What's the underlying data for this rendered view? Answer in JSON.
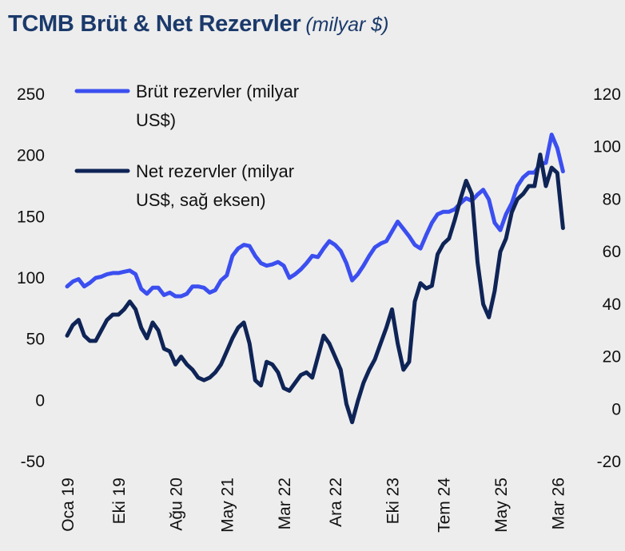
{
  "chart_data": {
    "type": "line",
    "title": "TCMB Brüt & Net Rezervler",
    "subtitle": "(milyar $)",
    "colors": {
      "brut": "#3b4ff0",
      "net": "#0f2456",
      "background": "#ededed"
    },
    "y_left": {
      "min": -50,
      "max": 250,
      "ticks": [
        "250",
        "200",
        "150",
        "100",
        "50",
        "0",
        "-50"
      ]
    },
    "y_right": {
      "min": -20,
      "max": 120,
      "ticks": [
        "120",
        "100",
        "80",
        "60",
        "40",
        "20",
        "0",
        "-20"
      ]
    },
    "x_ticks": [
      "Oca 19",
      "Eki 19",
      "Ağu 20",
      "May 21",
      "Mar 22",
      "Ara 22",
      "Eki 23",
      "Tem 24",
      "May 25",
      "Mar 26"
    ],
    "x_tick_positions": [
      0,
      9,
      19,
      28,
      38,
      47,
      57,
      66,
      76,
      86
    ],
    "x_range": [
      0,
      87.5
    ],
    "legend": [
      {
        "key": "brut",
        "line1": "Brüt rezervler (milyar",
        "line2": "US$)"
      },
      {
        "key": "net",
        "line1": "Net rezervler (milyar",
        "line2": "US$, sağ eksen)"
      }
    ],
    "series": [
      {
        "name": "Brüt rezervler (milyar US$)",
        "key": "brut",
        "axis": "left",
        "points": [
          [
            0,
            93
          ],
          [
            1,
            97
          ],
          [
            2,
            99
          ],
          [
            3,
            93
          ],
          [
            4,
            96
          ],
          [
            5,
            100
          ],
          [
            6,
            101
          ],
          [
            7,
            103
          ],
          [
            8,
            104
          ],
          [
            9,
            104
          ],
          [
            10,
            105
          ],
          [
            11,
            106
          ],
          [
            12,
            103
          ],
          [
            13,
            91
          ],
          [
            14,
            87
          ],
          [
            15,
            92
          ],
          [
            16,
            92
          ],
          [
            17,
            86
          ],
          [
            18,
            88
          ],
          [
            19,
            85
          ],
          [
            20,
            85
          ],
          [
            21,
            87
          ],
          [
            22,
            93
          ],
          [
            23,
            93
          ],
          [
            24,
            92
          ],
          [
            25,
            88
          ],
          [
            26,
            90
          ],
          [
            27,
            98
          ],
          [
            28,
            102
          ],
          [
            29,
            118
          ],
          [
            30,
            124
          ],
          [
            31,
            127
          ],
          [
            32,
            126
          ],
          [
            33,
            118
          ],
          [
            34,
            112
          ],
          [
            35,
            110
          ],
          [
            36,
            111
          ],
          [
            37,
            113
          ],
          [
            38,
            110
          ],
          [
            39,
            100
          ],
          [
            40,
            103
          ],
          [
            41,
            107
          ],
          [
            42,
            112
          ],
          [
            43,
            118
          ],
          [
            44,
            117
          ],
          [
            45,
            124
          ],
          [
            46,
            130
          ],
          [
            47,
            127
          ],
          [
            48,
            122
          ],
          [
            49,
            112
          ],
          [
            50,
            98
          ],
          [
            51,
            103
          ],
          [
            52,
            110
          ],
          [
            53,
            118
          ],
          [
            54,
            125
          ],
          [
            55,
            128
          ],
          [
            56,
            130
          ],
          [
            57,
            138
          ],
          [
            58,
            146
          ],
          [
            59,
            140
          ],
          [
            60,
            134
          ],
          [
            61,
            127
          ],
          [
            62,
            124
          ],
          [
            63,
            135
          ],
          [
            64,
            145
          ],
          [
            65,
            152
          ],
          [
            66,
            154
          ],
          [
            67,
            154
          ],
          [
            68,
            156
          ],
          [
            69,
            161
          ],
          [
            70,
            165
          ],
          [
            71,
            163
          ],
          [
            72,
            168
          ],
          [
            73,
            172
          ],
          [
            74,
            164
          ],
          [
            75,
            145
          ],
          [
            76,
            139
          ],
          [
            77,
            152
          ],
          [
            78,
            161
          ],
          [
            79,
            175
          ],
          [
            80,
            182
          ],
          [
            81,
            186
          ],
          [
            82,
            186
          ],
          [
            83,
            193
          ],
          [
            84,
            194
          ],
          [
            85,
            217
          ],
          [
            86,
            206
          ],
          [
            87,
            187
          ]
        ]
      },
      {
        "name": "Net rezervler (milyar US$, sağ eksen)",
        "key": "net",
        "axis": "right",
        "points": [
          [
            0,
            28
          ],
          [
            1,
            32
          ],
          [
            2,
            34
          ],
          [
            3,
            28
          ],
          [
            4,
            26
          ],
          [
            5,
            26
          ],
          [
            6,
            30
          ],
          [
            7,
            34
          ],
          [
            8,
            36
          ],
          [
            9,
            36
          ],
          [
            10,
            38
          ],
          [
            11,
            41
          ],
          [
            12,
            38
          ],
          [
            13,
            31
          ],
          [
            14,
            27
          ],
          [
            15,
            33
          ],
          [
            16,
            30
          ],
          [
            17,
            23
          ],
          [
            18,
            22
          ],
          [
            19,
            17
          ],
          [
            20,
            20
          ],
          [
            21,
            17
          ],
          [
            22,
            15
          ],
          [
            23,
            12
          ],
          [
            24,
            11
          ],
          [
            25,
            12
          ],
          [
            26,
            14
          ],
          [
            27,
            17
          ],
          [
            28,
            22
          ],
          [
            29,
            27
          ],
          [
            30,
            31
          ],
          [
            31,
            33
          ],
          [
            32,
            25
          ],
          [
            33,
            11
          ],
          [
            34,
            9
          ],
          [
            35,
            18
          ],
          [
            36,
            17
          ],
          [
            37,
            14
          ],
          [
            38,
            8
          ],
          [
            39,
            7
          ],
          [
            40,
            10
          ],
          [
            41,
            13
          ],
          [
            42,
            14
          ],
          [
            43,
            12
          ],
          [
            44,
            20
          ],
          [
            45,
            28
          ],
          [
            46,
            25
          ],
          [
            47,
            20
          ],
          [
            48,
            15
          ],
          [
            49,
            2
          ],
          [
            50,
            -5
          ],
          [
            51,
            3
          ],
          [
            52,
            10
          ],
          [
            53,
            15
          ],
          [
            54,
            19
          ],
          [
            55,
            25
          ],
          [
            56,
            31
          ],
          [
            57,
            38
          ],
          [
            58,
            25
          ],
          [
            59,
            15
          ],
          [
            60,
            18
          ],
          [
            61,
            41
          ],
          [
            62,
            48
          ],
          [
            63,
            46
          ],
          [
            64,
            47
          ],
          [
            65,
            59
          ],
          [
            66,
            63
          ],
          [
            67,
            65
          ],
          [
            68,
            72
          ],
          [
            69,
            80
          ],
          [
            70,
            87
          ],
          [
            71,
            82
          ],
          [
            72,
            56
          ],
          [
            73,
            40
          ],
          [
            74,
            35
          ],
          [
            75,
            45
          ],
          [
            76,
            60
          ],
          [
            77,
            65
          ],
          [
            78,
            75
          ],
          [
            79,
            80
          ],
          [
            80,
            82
          ],
          [
            81,
            85
          ],
          [
            82,
            85
          ],
          [
            83,
            97
          ],
          [
            84,
            85
          ],
          [
            85,
            92
          ],
          [
            86,
            90
          ],
          [
            87,
            69
          ]
        ]
      }
    ]
  }
}
